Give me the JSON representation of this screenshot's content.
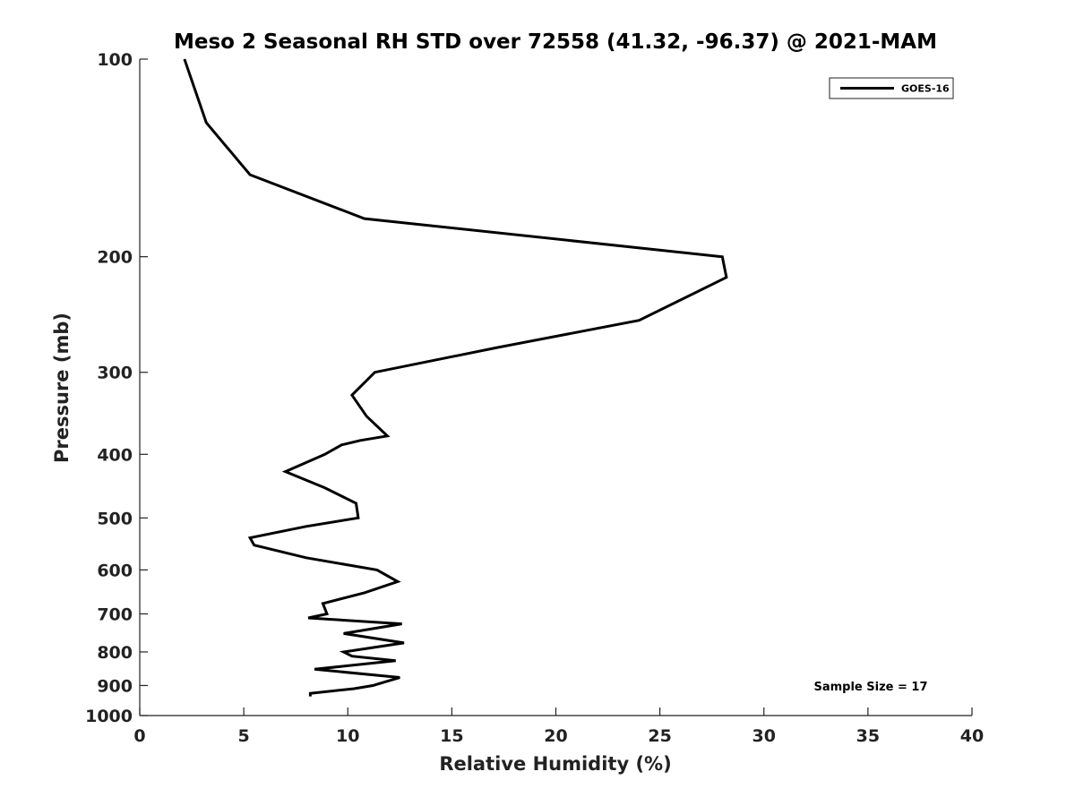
{
  "chart_data": {
    "type": "line",
    "title": "Meso 2 Seasonal RH STD over 72558 (41.32, -96.37) @ 2021-MAM",
    "xlabel": "Relative Humidity (%)",
    "ylabel": "Pressure (mb)",
    "xlim": [
      0,
      40
    ],
    "ylim": [
      1000,
      100
    ],
    "y_scale": "log",
    "y_reversed": true,
    "grid": false,
    "x_ticks": [
      "0",
      "5",
      "10",
      "15",
      "20",
      "25",
      "30",
      "35",
      "40"
    ],
    "y_ticks": [
      "100",
      "200",
      "300",
      "400",
      "500",
      "600",
      "700",
      "800",
      "900",
      "1000"
    ],
    "legend": {
      "position": "top-right",
      "entries": [
        "GOES-16"
      ]
    },
    "annotation": "Sample Size = 17",
    "series": [
      {
        "name": "GOES-16",
        "color": "#000000",
        "points": [
          [
            2.15,
            100
          ],
          [
            3.2,
            125
          ],
          [
            5.3,
            150
          ],
          [
            10.8,
            175
          ],
          [
            28.0,
            200
          ],
          [
            28.2,
            215
          ],
          [
            24.0,
            250
          ],
          [
            17.2,
            275
          ],
          [
            11.3,
            300
          ],
          [
            10.2,
            325
          ],
          [
            10.9,
            350
          ],
          [
            11.9,
            375
          ],
          [
            10.6,
            381
          ],
          [
            9.7,
            387
          ],
          [
            8.9,
            400
          ],
          [
            7.0,
            425
          ],
          [
            8.9,
            450
          ],
          [
            10.4,
            475
          ],
          [
            10.5,
            500
          ],
          [
            8.0,
            515
          ],
          [
            5.3,
            536
          ],
          [
            5.5,
            550
          ],
          [
            8.0,
            575
          ],
          [
            11.4,
            600
          ],
          [
            12.4,
            625
          ],
          [
            10.8,
            650
          ],
          [
            8.8,
            675
          ],
          [
            9.0,
            700
          ],
          [
            8.1,
            710
          ],
          [
            12.6,
            725
          ],
          [
            9.8,
            750
          ],
          [
            12.7,
            775
          ],
          [
            9.8,
            800
          ],
          [
            10.2,
            812
          ],
          [
            12.3,
            825
          ],
          [
            8.4,
            850
          ],
          [
            12.5,
            875
          ],
          [
            11.2,
            900
          ],
          [
            10.3,
            910
          ],
          [
            8.2,
            925
          ],
          [
            8.2,
            935
          ]
        ]
      }
    ]
  }
}
